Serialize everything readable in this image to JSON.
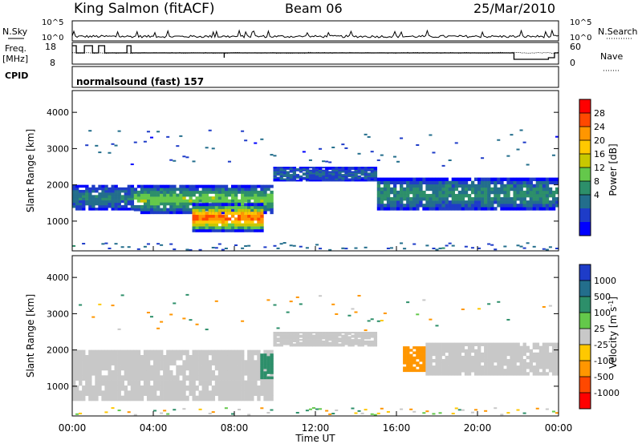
{
  "header": {
    "station": "King Salmon (fitACF)",
    "beam": "Beam 06",
    "date": "25/Mar/2010"
  },
  "top_panels": {
    "nsky_label": "N.Sky",
    "nsky_ticks": [
      "10^5",
      "10^0"
    ],
    "nsearch_label": "N.Search",
    "nsearch_ticks": [
      "10^5",
      "10^0"
    ],
    "freq_label_1": "Freq.",
    "freq_label_2": "[MHz]",
    "freq_ticks": [
      "18",
      "8"
    ],
    "nave_label": "Nave",
    "nave_ticks": [
      "60",
      "0"
    ],
    "cpid_label": "CPID",
    "cpid_value": "normalsound (fast) 157"
  },
  "colorbars": {
    "power": {
      "label": "Power [dB]",
      "ticks": [
        "28",
        "24",
        "20",
        "16",
        "12",
        "8",
        "4"
      ],
      "colors": [
        "#ff0000",
        "#ff4800",
        "#ff9600",
        "#ffc800",
        "#c8c800",
        "#64c84b",
        "#2d8f6a",
        "#236e8c",
        "#1e3cc8",
        "#0000ff"
      ]
    },
    "velocity": {
      "label": "Velocity [m s",
      "label_exp": "-1",
      "label_end": "]",
      "ticks": [
        "1000",
        "500",
        "100",
        "25",
        "-25",
        "-100",
        "-500",
        "-1000"
      ],
      "colors": [
        "#1e3cc8",
        "#236e8c",
        "#2d8f6a",
        "#64c84b",
        "#c8c8c8",
        "#ffc800",
        "#ff9600",
        "#ff4800",
        "#ff0000"
      ]
    }
  },
  "chart_data": [
    {
      "type": "heatmap",
      "title": "Power",
      "ylabel": "Slant Range [km]",
      "xlabel": "Time UT",
      "y_ticks": [
        "4000",
        "3000",
        "2000",
        "1000"
      ],
      "ylim": [
        180,
        4600
      ],
      "x_ticks": [
        "00:00",
        "04:00",
        "08:00",
        "12:00",
        "16:00",
        "20:00",
        "00:00"
      ],
      "xlim_hours": [
        0,
        24
      ],
      "colorbar_unit": "dB",
      "description_bands": [
        {
          "t_start": 0.0,
          "t_end": 3.0,
          "range_km": [
            1300,
            2000
          ],
          "level_db": 10
        },
        {
          "t_start": 3.0,
          "t_end": 10.0,
          "range_km": [
            1200,
            2000
          ],
          "level_db": 16
        },
        {
          "t_start": 6.0,
          "t_end": 9.5,
          "range_km": [
            700,
            1500
          ],
          "level_db": 28
        },
        {
          "t_start": 10.0,
          "t_end": 15.0,
          "range_km": [
            2100,
            2500
          ],
          "level_db": 8
        },
        {
          "t_start": 15.0,
          "t_end": 24.0,
          "range_km": [
            1300,
            2200
          ],
          "level_db": 12
        }
      ]
    },
    {
      "type": "heatmap",
      "title": "Velocity",
      "ylabel": "Slant Range [km]",
      "xlabel": "Time UT",
      "y_ticks": [
        "4000",
        "3000",
        "2000",
        "1000"
      ],
      "ylim": [
        180,
        4600
      ],
      "x_ticks": [
        "00:00",
        "04:00",
        "08:00",
        "12:00",
        "16:00",
        "20:00",
        "00:00"
      ],
      "xlim_hours": [
        0,
        24
      ],
      "colorbar_unit": "m s-1",
      "description_bands": [
        {
          "t_start": 0.0,
          "t_end": 10.0,
          "range_km": [
            600,
            2000
          ],
          "velocity": 0
        },
        {
          "t_start": 9.3,
          "t_end": 10.0,
          "range_km": [
            1200,
            1900
          ],
          "velocity": 80
        },
        {
          "t_start": 10.0,
          "t_end": 15.0,
          "range_km": [
            2100,
            2500
          ],
          "velocity": 0
        },
        {
          "t_start": 16.3,
          "t_end": 17.5,
          "range_km": [
            1400,
            2100
          ],
          "velocity": -150
        },
        {
          "t_start": 17.5,
          "t_end": 24.0,
          "range_km": [
            1300,
            2200
          ],
          "velocity": 0
        }
      ]
    }
  ],
  "x_axis": {
    "ticks": [
      "00:00",
      "04:00",
      "08:00",
      "12:00",
      "16:00",
      "20:00",
      "00:00"
    ],
    "label": "Time UT"
  }
}
